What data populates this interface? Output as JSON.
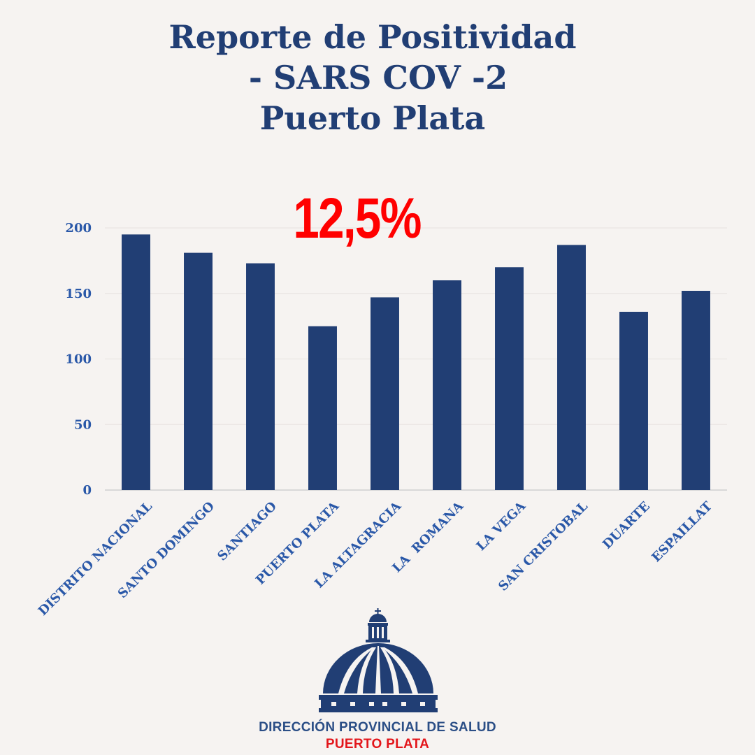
{
  "title_lines": [
    "Reporte de Positividad",
    " - SARS COV -2",
    "Puerto Plata"
  ],
  "highlight": "12,5%",
  "organization": {
    "line1": "DIRECCIÓN PROVINCIAL DE SALUD",
    "line2": "PUERTO PLATA"
  },
  "colors": {
    "title": "#213e74",
    "bar": "#213e74",
    "highlight": "#ff0000",
    "axis_text": "#2a58a8",
    "org_line2": "#e3161b",
    "background": "#f6f3f1"
  },
  "icons": [
    "dome-building-logo"
  ],
  "chart_data": {
    "type": "bar",
    "title": "",
    "xlabel": "",
    "ylabel": "",
    "categories": [
      "DISTRITO NACIONAL",
      "SANTO DOMINGO",
      "SANTIAGO",
      "PUERTO PLATA",
      "LA ALTAGRACIA",
      "LA  ROMANA",
      "LA VEGA",
      "SAN CRISTOBAL",
      "DUARTE",
      "ESPAILLAT"
    ],
    "values": [
      195,
      181,
      173,
      125,
      147,
      160,
      170,
      187,
      136,
      152
    ],
    "ylim": [
      0,
      200
    ],
    "yticks": [
      0,
      50,
      100,
      150,
      200
    ],
    "grid": true,
    "legend": "none"
  }
}
